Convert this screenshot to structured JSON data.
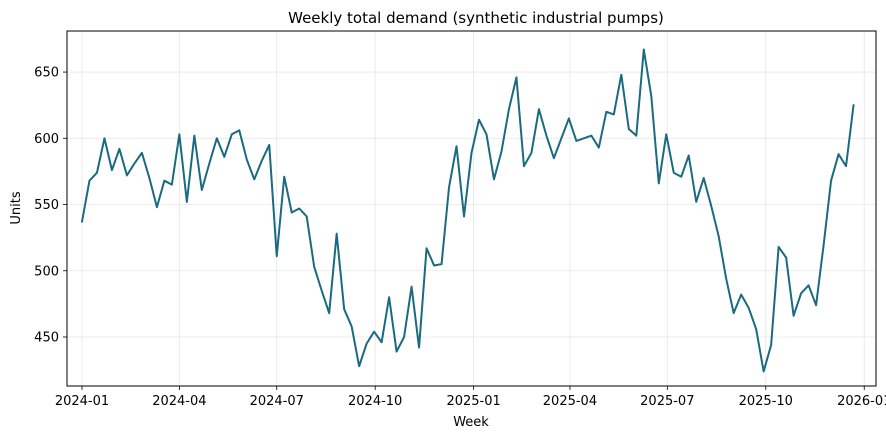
{
  "chart_data": {
    "type": "line",
    "title": "Weekly total demand (synthetic industrial pumps)",
    "xlabel": "Week",
    "ylabel": "Units",
    "xlim": [
      "2023-12-18",
      "2026-01-12"
    ],
    "ylim": [
      413,
      681
    ],
    "grid": true,
    "x_ticks": [
      "2024-01",
      "2024-04",
      "2024-07",
      "2024-10",
      "2025-01",
      "2025-04",
      "2025-07",
      "2025-10",
      "2026-01"
    ],
    "y_ticks": [
      450,
      500,
      550,
      600,
      650
    ],
    "series": [
      {
        "color": "#1a6a80",
        "x": [
          "2024-01-01",
          "2024-01-08",
          "2024-01-15",
          "2024-01-22",
          "2024-01-29",
          "2024-02-05",
          "2024-02-12",
          "2024-02-19",
          "2024-02-26",
          "2024-03-04",
          "2024-03-11",
          "2024-03-18",
          "2024-03-25",
          "2024-04-01",
          "2024-04-08",
          "2024-04-15",
          "2024-04-22",
          "2024-04-29",
          "2024-05-06",
          "2024-05-13",
          "2024-05-20",
          "2024-05-27",
          "2024-06-03",
          "2024-06-10",
          "2024-06-17",
          "2024-06-24",
          "2024-07-01",
          "2024-07-08",
          "2024-07-15",
          "2024-07-22",
          "2024-07-29",
          "2024-08-05",
          "2024-08-12",
          "2024-08-19",
          "2024-08-26",
          "2024-09-02",
          "2024-09-09",
          "2024-09-16",
          "2024-09-23",
          "2024-09-30",
          "2024-10-07",
          "2024-10-14",
          "2024-10-21",
          "2024-10-28",
          "2024-11-04",
          "2024-11-11",
          "2024-11-18",
          "2024-11-25",
          "2024-12-02",
          "2024-12-09",
          "2024-12-16",
          "2024-12-23",
          "2024-12-30",
          "2025-01-06",
          "2025-01-13",
          "2025-01-20",
          "2025-01-27",
          "2025-02-03",
          "2025-02-10",
          "2025-02-17",
          "2025-02-24",
          "2025-03-03",
          "2025-03-10",
          "2025-03-17",
          "2025-03-24",
          "2025-03-31",
          "2025-04-07",
          "2025-04-14",
          "2025-04-21",
          "2025-04-28",
          "2025-05-05",
          "2025-05-12",
          "2025-05-19",
          "2025-05-26",
          "2025-06-02",
          "2025-06-09",
          "2025-06-16",
          "2025-06-23",
          "2025-06-30",
          "2025-07-07",
          "2025-07-14",
          "2025-07-21",
          "2025-07-28",
          "2025-08-04",
          "2025-08-11",
          "2025-08-18",
          "2025-08-25",
          "2025-09-01",
          "2025-09-08",
          "2025-09-15",
          "2025-09-22",
          "2025-09-29",
          "2025-10-06",
          "2025-10-13",
          "2025-10-20",
          "2025-10-27",
          "2025-11-03",
          "2025-11-10",
          "2025-11-17",
          "2025-11-24",
          "2025-12-01",
          "2025-12-08",
          "2025-12-15",
          "2025-12-22"
        ],
        "values": [
          537,
          568,
          574,
          600,
          576,
          592,
          572,
          581,
          589,
          570,
          548,
          568,
          565,
          603,
          552,
          602,
          561,
          581,
          600,
          586,
          603,
          606,
          584,
          569,
          583,
          595,
          511,
          571,
          544,
          547,
          541,
          503,
          485,
          468,
          528,
          471,
          458,
          428,
          445,
          454,
          446,
          480,
          439,
          450,
          488,
          442,
          517,
          504,
          505,
          563,
          594,
          541,
          589,
          614,
          603,
          569,
          590,
          622,
          646,
          579,
          589,
          622,
          602,
          585,
          600,
          615,
          598,
          600,
          602,
          593,
          620,
          618,
          648,
          607,
          602,
          667,
          632,
          566,
          603,
          574,
          571,
          587,
          552,
          570,
          549,
          526,
          494,
          468,
          482,
          472,
          456,
          424,
          444,
          518,
          510,
          466,
          483,
          489,
          474,
          519,
          568,
          588,
          579,
          625
        ]
      }
    ]
  }
}
